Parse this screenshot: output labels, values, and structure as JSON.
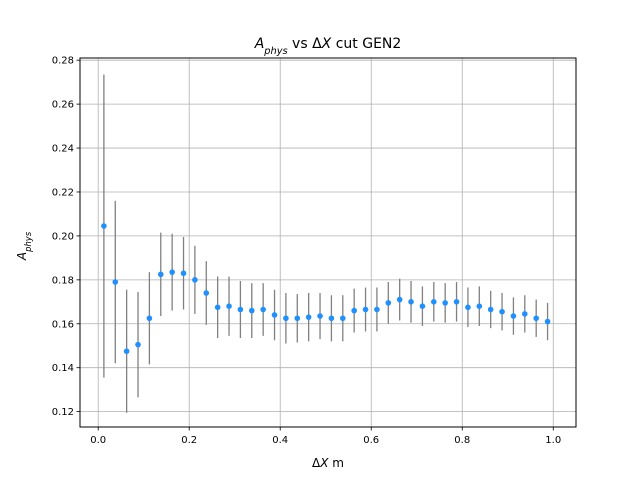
{
  "chart_data": {
    "type": "scatter",
    "title_parts": [
      {
        "text": "A",
        "italic": true
      },
      {
        "text": "phys",
        "italic": true,
        "sub": true
      },
      {
        "text": " vs Δ",
        "italic": false
      },
      {
        "text": "X",
        "italic": true
      },
      {
        "text": " cut GEN2",
        "italic": false
      }
    ],
    "xlabel_parts": [
      {
        "text": "Δ",
        "italic": false
      },
      {
        "text": "X",
        "italic": true
      },
      {
        "text": " m",
        "italic": false
      }
    ],
    "ylabel_parts": [
      {
        "text": "A",
        "italic": true
      },
      {
        "text": "phys",
        "italic": true,
        "sub": true
      }
    ],
    "xlim": [
      -0.04,
      1.05
    ],
    "ylim": [
      0.113,
      0.281
    ],
    "xticks": [
      0.0,
      0.2,
      0.4,
      0.6,
      0.8,
      1.0
    ],
    "xtick_labels": [
      "0.0",
      "0.2",
      "0.4",
      "0.6",
      "0.8",
      "1.0"
    ],
    "yticks": [
      0.12,
      0.14,
      0.16,
      0.18,
      0.2,
      0.22,
      0.24,
      0.26,
      0.28
    ],
    "ytick_labels": [
      "0.12",
      "0.14",
      "0.16",
      "0.18",
      "0.20",
      "0.22",
      "0.24",
      "0.26",
      "0.28"
    ],
    "grid": true,
    "point_color": "#1e90ff",
    "errorbar_color": "#808080",
    "x": [
      0.0125,
      0.0375,
      0.0625,
      0.0875,
      0.1125,
      0.1375,
      0.1625,
      0.1875,
      0.2125,
      0.2375,
      0.2625,
      0.2875,
      0.3125,
      0.3375,
      0.3625,
      0.3875,
      0.4125,
      0.4375,
      0.4625,
      0.4875,
      0.5125,
      0.5375,
      0.5625,
      0.5875,
      0.6125,
      0.6375,
      0.6625,
      0.6875,
      0.7125,
      0.7375,
      0.7625,
      0.7875,
      0.8125,
      0.8375,
      0.8625,
      0.8875,
      0.9125,
      0.9375,
      0.9625,
      0.9875
    ],
    "y": [
      0.2045,
      0.179,
      0.1475,
      0.1505,
      0.1625,
      0.1825,
      0.1835,
      0.183,
      0.18,
      0.174,
      0.1675,
      0.168,
      0.1665,
      0.166,
      0.1665,
      0.164,
      0.1625,
      0.1625,
      0.163,
      0.1635,
      0.1625,
      0.1625,
      0.166,
      0.1665,
      0.1665,
      0.1695,
      0.171,
      0.17,
      0.168,
      0.17,
      0.1695,
      0.17,
      0.1675,
      0.168,
      0.1665,
      0.1655,
      0.1635,
      0.1645,
      0.1625,
      0.161
    ],
    "yerr": [
      0.069,
      0.037,
      0.028,
      0.024,
      0.021,
      0.019,
      0.0175,
      0.0165,
      0.0155,
      0.0145,
      0.014,
      0.0135,
      0.013,
      0.0125,
      0.012,
      0.0115,
      0.0115,
      0.011,
      0.011,
      0.0105,
      0.0105,
      0.0105,
      0.01,
      0.01,
      0.01,
      0.0095,
      0.0095,
      0.0095,
      0.009,
      0.009,
      0.009,
      0.009,
      0.009,
      0.009,
      0.0085,
      0.0085,
      0.0085,
      0.0085,
      0.0085,
      0.0085
    ]
  }
}
